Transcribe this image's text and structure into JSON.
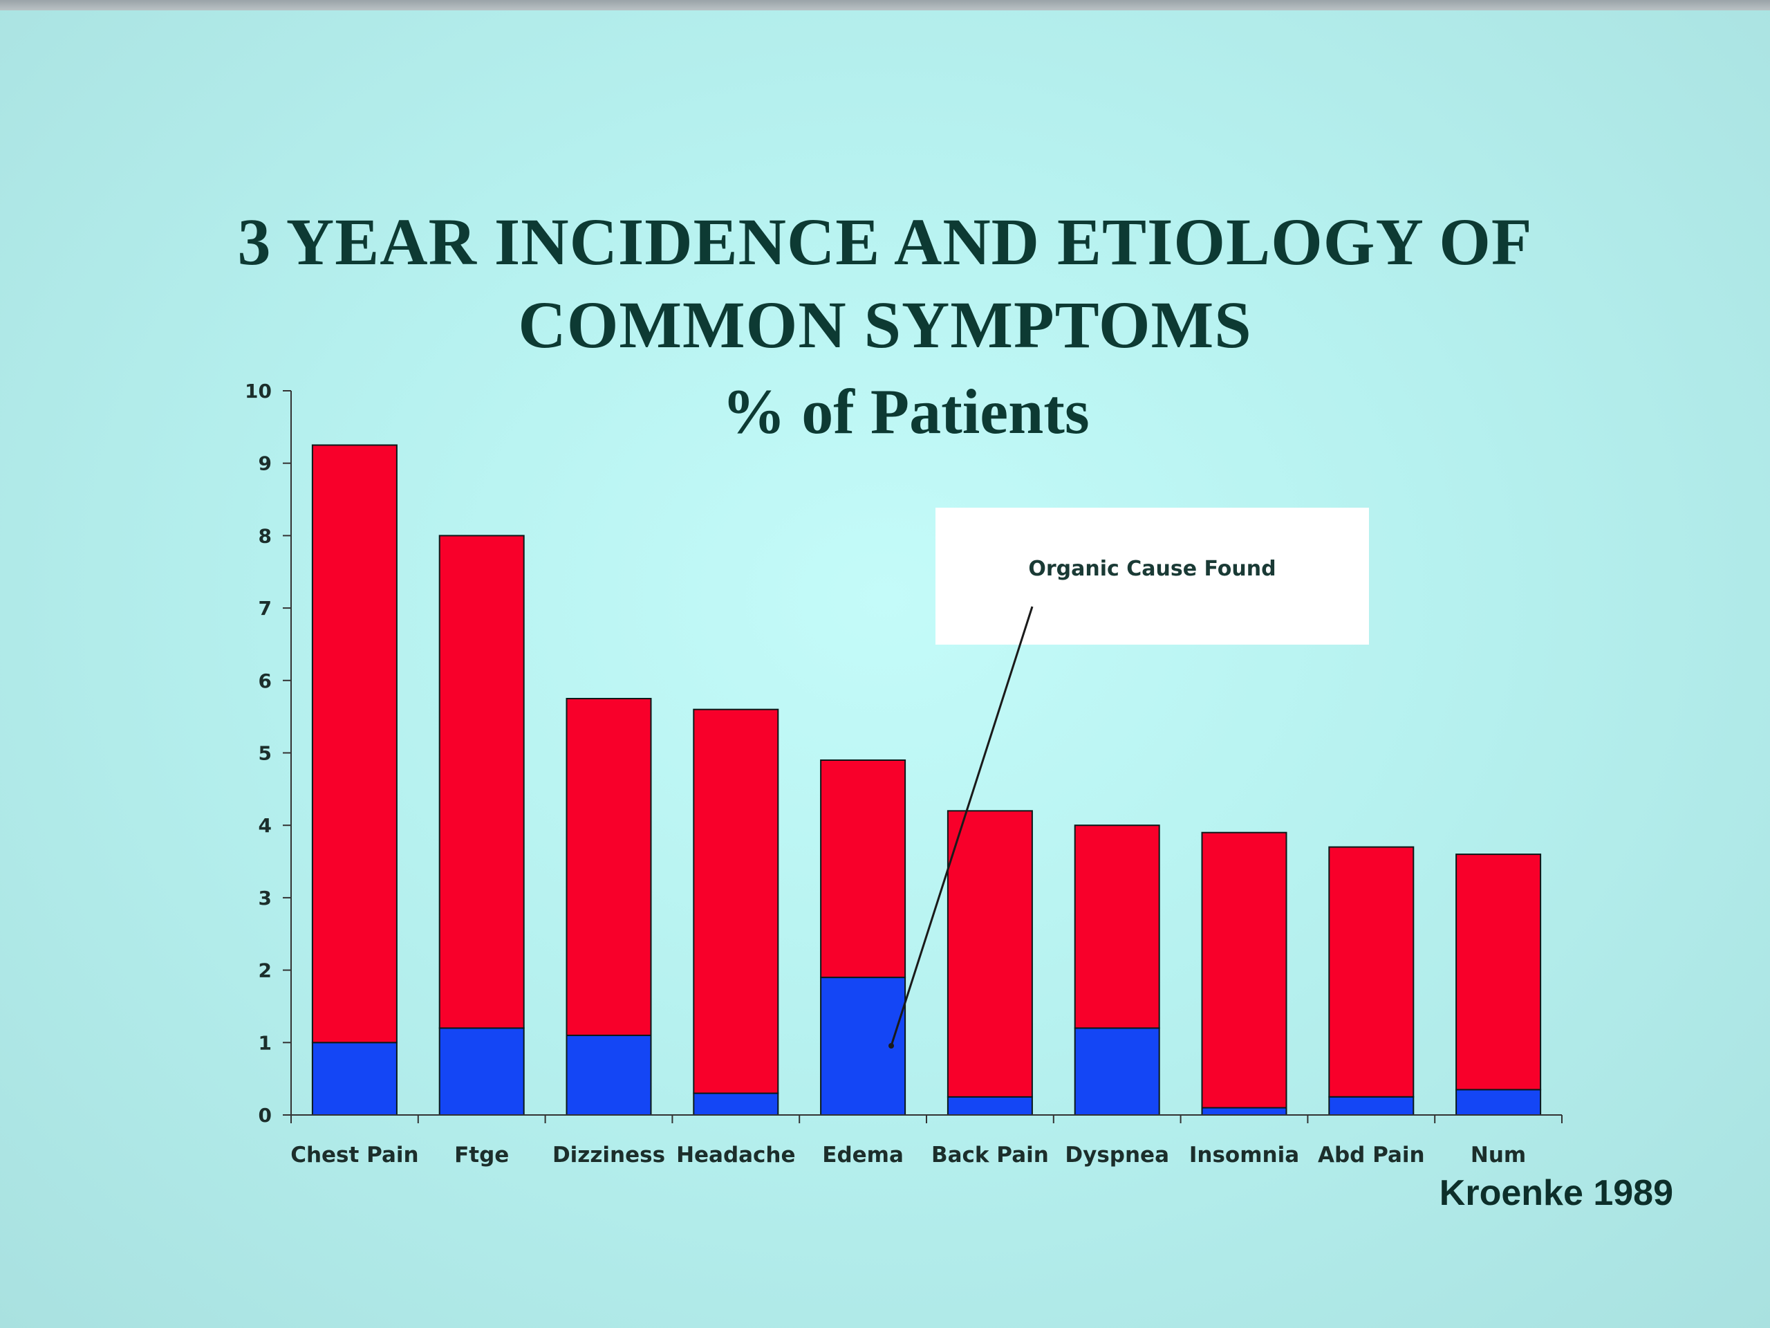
{
  "slide": {
    "title_line1": "3 YEAR INCIDENCE AND ETIOLOGY OF",
    "title_line2": "COMMON SYMPTOMS",
    "subtitle": "% of Patients",
    "source": "Kroenke 1989"
  },
  "chart_data": {
    "type": "bar",
    "stacked": true,
    "title": "3 YEAR INCIDENCE AND ETIOLOGY OF COMMON SYMPTOMS",
    "subtitle": "% of Patients",
    "categories": [
      "Chest Pain",
      "Ftge",
      "Dizziness",
      "Headache",
      "Edema",
      "Back Pain",
      "Dyspnea",
      "Insomnia",
      "Abd Pain",
      "Num"
    ],
    "series": [
      {
        "values": [
          1.0,
          1.2,
          1.1,
          0.3,
          1.9,
          0.25,
          1.2,
          0.1,
          0.25,
          0.35
        ],
        "color": "#1446f5"
      },
      {
        "values": [
          8.25,
          6.8,
          4.65,
          5.3,
          3.0,
          3.95,
          2.8,
          3.8,
          3.45,
          3.25
        ],
        "color": "#f8002a"
      }
    ],
    "totals": [
      9.25,
      8.0,
      5.75,
      5.6,
      4.9,
      4.2,
      4.0,
      3.9,
      3.7,
      3.6
    ],
    "ylim": [
      0,
      10
    ],
    "yticks": [
      "0",
      "1",
      "2",
      "3",
      "4",
      "5",
      "6",
      "7",
      "8",
      "9",
      "10"
    ],
    "xlabel": "",
    "ylabel": "",
    "grid": false,
    "annotation": {
      "text": "Organic Cause Found",
      "points_to": "Edema"
    }
  }
}
